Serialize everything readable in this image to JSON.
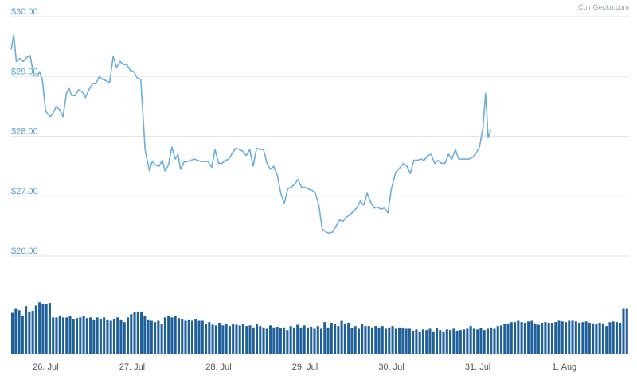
{
  "credit": "CoinGecko.com",
  "colors": {
    "line": "#6aaee0",
    "volume": "#1f5f9a",
    "grid": "#e6e6e6",
    "tick_y": "#5aa0d0",
    "tick_x": "#555555"
  },
  "chart_data": {
    "type": "line",
    "title": "",
    "xlabel": "",
    "ylabel": "",
    "ylim": [
      26.0,
      30.0
    ],
    "y_ticks": [
      "$30.00",
      "$29.00",
      "$28.00",
      "$27.00",
      "$26.00"
    ],
    "y_tick_values": [
      30,
      29,
      28,
      27,
      26
    ],
    "x_ticks": [
      "26. Jul",
      "27. Jul",
      "28. Jul",
      "29. Jul",
      "30. Jul",
      "31. Jul",
      "1. Aug"
    ],
    "x_tick_values": [
      0.4,
      1.4,
      2.4,
      3.4,
      4.4,
      5.4,
      6.4
    ],
    "xlim": [
      0,
      7.15
    ],
    "grid": true,
    "legend": "none",
    "series": [
      {
        "points": [
          [
            0.0,
            29.45
          ],
          [
            0.03,
            29.7
          ],
          [
            0.06,
            29.25
          ],
          [
            0.1,
            29.3
          ],
          [
            0.14,
            29.25
          ],
          [
            0.18,
            29.32
          ],
          [
            0.22,
            29.35
          ],
          [
            0.26,
            29.02
          ],
          [
            0.3,
            29.0
          ],
          [
            0.33,
            29.08
          ],
          [
            0.36,
            28.95
          ],
          [
            0.4,
            28.42
          ],
          [
            0.45,
            28.33
          ],
          [
            0.48,
            28.37
          ],
          [
            0.52,
            28.5
          ],
          [
            0.56,
            28.45
          ],
          [
            0.6,
            28.33
          ],
          [
            0.64,
            28.72
          ],
          [
            0.67,
            28.8
          ],
          [
            0.7,
            28.68
          ],
          [
            0.74,
            28.68
          ],
          [
            0.78,
            28.78
          ],
          [
            0.82,
            28.75
          ],
          [
            0.86,
            28.65
          ],
          [
            0.9,
            28.78
          ],
          [
            0.94,
            28.88
          ],
          [
            0.98,
            28.88
          ],
          [
            1.02,
            29.0
          ],
          [
            1.06,
            28.95
          ],
          [
            1.1,
            28.93
          ],
          [
            1.14,
            28.9
          ],
          [
            1.18,
            29.33
          ],
          [
            1.22,
            29.15
          ],
          [
            1.26,
            29.25
          ],
          [
            1.3,
            29.2
          ],
          [
            1.34,
            29.2
          ],
          [
            1.38,
            29.1
          ],
          [
            1.42,
            29.08
          ],
          [
            1.46,
            28.97
          ],
          [
            1.5,
            28.95
          ],
          [
            1.55,
            27.78
          ],
          [
            1.6,
            27.42
          ],
          [
            1.63,
            27.58
          ],
          [
            1.67,
            27.52
          ],
          [
            1.71,
            27.5
          ],
          [
            1.75,
            27.6
          ],
          [
            1.78,
            27.42
          ],
          [
            1.82,
            27.52
          ],
          [
            1.86,
            27.82
          ],
          [
            1.9,
            27.62
          ],
          [
            1.93,
            27.7
          ],
          [
            1.96,
            27.45
          ],
          [
            2.0,
            27.57
          ],
          [
            2.04,
            27.58
          ],
          [
            2.08,
            27.6
          ],
          [
            2.12,
            27.62
          ],
          [
            2.16,
            27.6
          ],
          [
            2.2,
            27.58
          ],
          [
            2.24,
            27.58
          ],
          [
            2.28,
            27.58
          ],
          [
            2.32,
            27.48
          ],
          [
            2.36,
            27.78
          ],
          [
            2.4,
            27.55
          ],
          [
            2.44,
            27.55
          ],
          [
            2.48,
            27.6
          ],
          [
            2.52,
            27.62
          ],
          [
            2.56,
            27.72
          ],
          [
            2.6,
            27.8
          ],
          [
            2.64,
            27.78
          ],
          [
            2.68,
            27.75
          ],
          [
            2.72,
            27.68
          ],
          [
            2.76,
            27.78
          ],
          [
            2.8,
            27.5
          ],
          [
            2.84,
            27.8
          ],
          [
            2.88,
            27.78
          ],
          [
            2.92,
            27.78
          ],
          [
            2.96,
            27.55
          ],
          [
            3.0,
            27.45
          ],
          [
            3.04,
            27.5
          ],
          [
            3.08,
            27.35
          ],
          [
            3.12,
            27.05
          ],
          [
            3.16,
            26.88
          ],
          [
            3.2,
            27.12
          ],
          [
            3.24,
            27.15
          ],
          [
            3.28,
            27.2
          ],
          [
            3.32,
            27.28
          ],
          [
            3.36,
            27.15
          ],
          [
            3.4,
            27.15
          ],
          [
            3.44,
            27.12
          ],
          [
            3.48,
            27.1
          ],
          [
            3.52,
            27.05
          ],
          [
            3.56,
            26.85
          ],
          [
            3.6,
            26.45
          ],
          [
            3.64,
            26.4
          ],
          [
            3.68,
            26.38
          ],
          [
            3.72,
            26.4
          ],
          [
            3.76,
            26.5
          ],
          [
            3.8,
            26.6
          ],
          [
            3.84,
            26.58
          ],
          [
            3.88,
            26.65
          ],
          [
            3.92,
            26.68
          ],
          [
            3.96,
            26.75
          ],
          [
            4.0,
            26.8
          ],
          [
            4.04,
            26.92
          ],
          [
            4.08,
            26.85
          ],
          [
            4.12,
            27.05
          ],
          [
            4.16,
            26.9
          ],
          [
            4.2,
            26.8
          ],
          [
            4.24,
            26.82
          ],
          [
            4.28,
            26.78
          ],
          [
            4.32,
            26.8
          ],
          [
            4.36,
            26.72
          ],
          [
            4.4,
            27.12
          ],
          [
            4.45,
            27.4
          ],
          [
            4.5,
            27.48
          ],
          [
            4.54,
            27.55
          ],
          [
            4.58,
            27.5
          ],
          [
            4.62,
            27.38
          ],
          [
            4.66,
            27.6
          ],
          [
            4.7,
            27.6
          ],
          [
            4.74,
            27.62
          ],
          [
            4.78,
            27.6
          ],
          [
            4.82,
            27.68
          ],
          [
            4.86,
            27.7
          ],
          [
            4.9,
            27.55
          ],
          [
            4.94,
            27.6
          ],
          [
            4.98,
            27.55
          ],
          [
            5.02,
            27.55
          ],
          [
            5.06,
            27.7
          ],
          [
            5.1,
            27.62
          ],
          [
            5.14,
            27.78
          ],
          [
            5.18,
            27.62
          ],
          [
            5.22,
            27.62
          ],
          [
            5.26,
            27.62
          ],
          [
            5.3,
            27.62
          ],
          [
            5.34,
            27.65
          ],
          [
            5.38,
            27.72
          ],
          [
            5.42,
            27.82
          ],
          [
            5.46,
            28.15
          ],
          [
            5.49,
            28.72
          ],
          [
            5.52,
            27.98
          ],
          [
            5.55,
            28.1
          ]
        ]
      }
    ],
    "volume": {
      "values": [
        0.62,
        0.68,
        0.66,
        0.58,
        0.72,
        0.64,
        0.65,
        0.73,
        0.78,
        0.76,
        0.75,
        0.77,
        0.55,
        0.55,
        0.57,
        0.55,
        0.55,
        0.57,
        0.53,
        0.54,
        0.55,
        0.57,
        0.54,
        0.55,
        0.52,
        0.55,
        0.53,
        0.55,
        0.52,
        0.5,
        0.53,
        0.55,
        0.52,
        0.48,
        0.55,
        0.6,
        0.63,
        0.64,
        0.63,
        0.57,
        0.52,
        0.5,
        0.48,
        0.5,
        0.45,
        0.55,
        0.58,
        0.55,
        0.57,
        0.54,
        0.53,
        0.5,
        0.52,
        0.5,
        0.53,
        0.5,
        0.5,
        0.46,
        0.48,
        0.44,
        0.43,
        0.47,
        0.43,
        0.45,
        0.42,
        0.45,
        0.44,
        0.43,
        0.45,
        0.42,
        0.43,
        0.4,
        0.45,
        0.42,
        0.4,
        0.38,
        0.43,
        0.4,
        0.41,
        0.39,
        0.4,
        0.36,
        0.42,
        0.4,
        0.44,
        0.4,
        0.43,
        0.4,
        0.41,
        0.38,
        0.42,
        0.38,
        0.48,
        0.4,
        0.47,
        0.45,
        0.42,
        0.5,
        0.46,
        0.47,
        0.39,
        0.42,
        0.38,
        0.45,
        0.42,
        0.42,
        0.4,
        0.42,
        0.4,
        0.42,
        0.38,
        0.4,
        0.42,
        0.38,
        0.4,
        0.39,
        0.38,
        0.38,
        0.35,
        0.37,
        0.34,
        0.37,
        0.36,
        0.38,
        0.34,
        0.39,
        0.36,
        0.34,
        0.37,
        0.36,
        0.38,
        0.35,
        0.36,
        0.37,
        0.38,
        0.42,
        0.38,
        0.37,
        0.39,
        0.36,
        0.38,
        0.4,
        0.38,
        0.42,
        0.43,
        0.45,
        0.46,
        0.48,
        0.48,
        0.5,
        0.48,
        0.47,
        0.49,
        0.5,
        0.46,
        0.44,
        0.47,
        0.48,
        0.47,
        0.47,
        0.48,
        0.5,
        0.49,
        0.48,
        0.5,
        0.5,
        0.49,
        0.47,
        0.48,
        0.49,
        0.47,
        0.46,
        0.45,
        0.47,
        0.46,
        0.42,
        0.48,
        0.49,
        0.48,
        0.47,
        0.68,
        0.68
      ]
    }
  }
}
